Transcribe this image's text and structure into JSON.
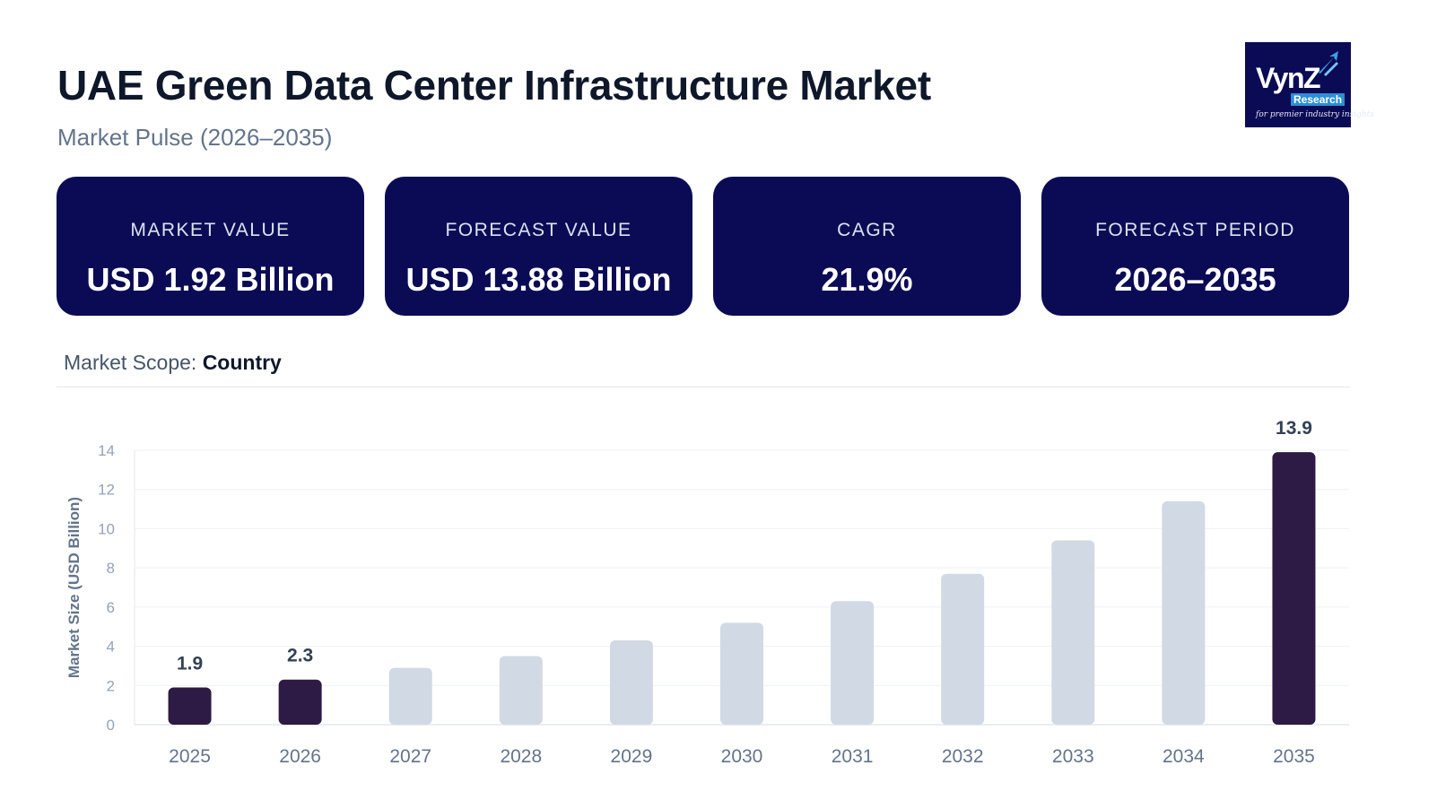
{
  "header": {
    "title": "UAE Green Data Center Infrastructure Market",
    "subtitle": "Market Pulse (2026–2035)"
  },
  "logo": {
    "brand": "VynZ",
    "sub": "Research",
    "tagline": "for premier industry insights",
    "bg_color": "#0b0b55"
  },
  "cards": [
    {
      "label": "MARKET VALUE",
      "value": "USD 1.92 Billion"
    },
    {
      "label": "FORECAST VALUE",
      "value": "USD 13.88 Billion"
    },
    {
      "label": "CAGR",
      "value": "21.9%"
    },
    {
      "label": "FORECAST PERIOD",
      "value": "2026–2035"
    }
  ],
  "scope": {
    "label": "Market Scope:",
    "value": "Country"
  },
  "colors": {
    "card_bg": "#0b0b55",
    "highlight_bar": "#2d1b45",
    "bar": "#d1d9e4"
  },
  "chart_data": {
    "type": "bar",
    "categories": [
      "2025",
      "2026",
      "2027",
      "2028",
      "2029",
      "2030",
      "2031",
      "2032",
      "2033",
      "2034",
      "2035"
    ],
    "values": [
      1.9,
      2.3,
      2.9,
      3.5,
      4.3,
      5.2,
      6.3,
      7.7,
      9.4,
      11.4,
      13.9
    ],
    "highlighted": [
      "2025",
      "2026",
      "2035"
    ],
    "data_labels": {
      "2025": "1.9",
      "2026": "2.3",
      "2035": "13.9"
    },
    "ylabel": "Market Size (USD Billion)",
    "xlabel": "",
    "ylim": [
      0,
      14
    ],
    "yticks": [
      0,
      2,
      4,
      6,
      8,
      10,
      12,
      14
    ],
    "grid": true
  }
}
